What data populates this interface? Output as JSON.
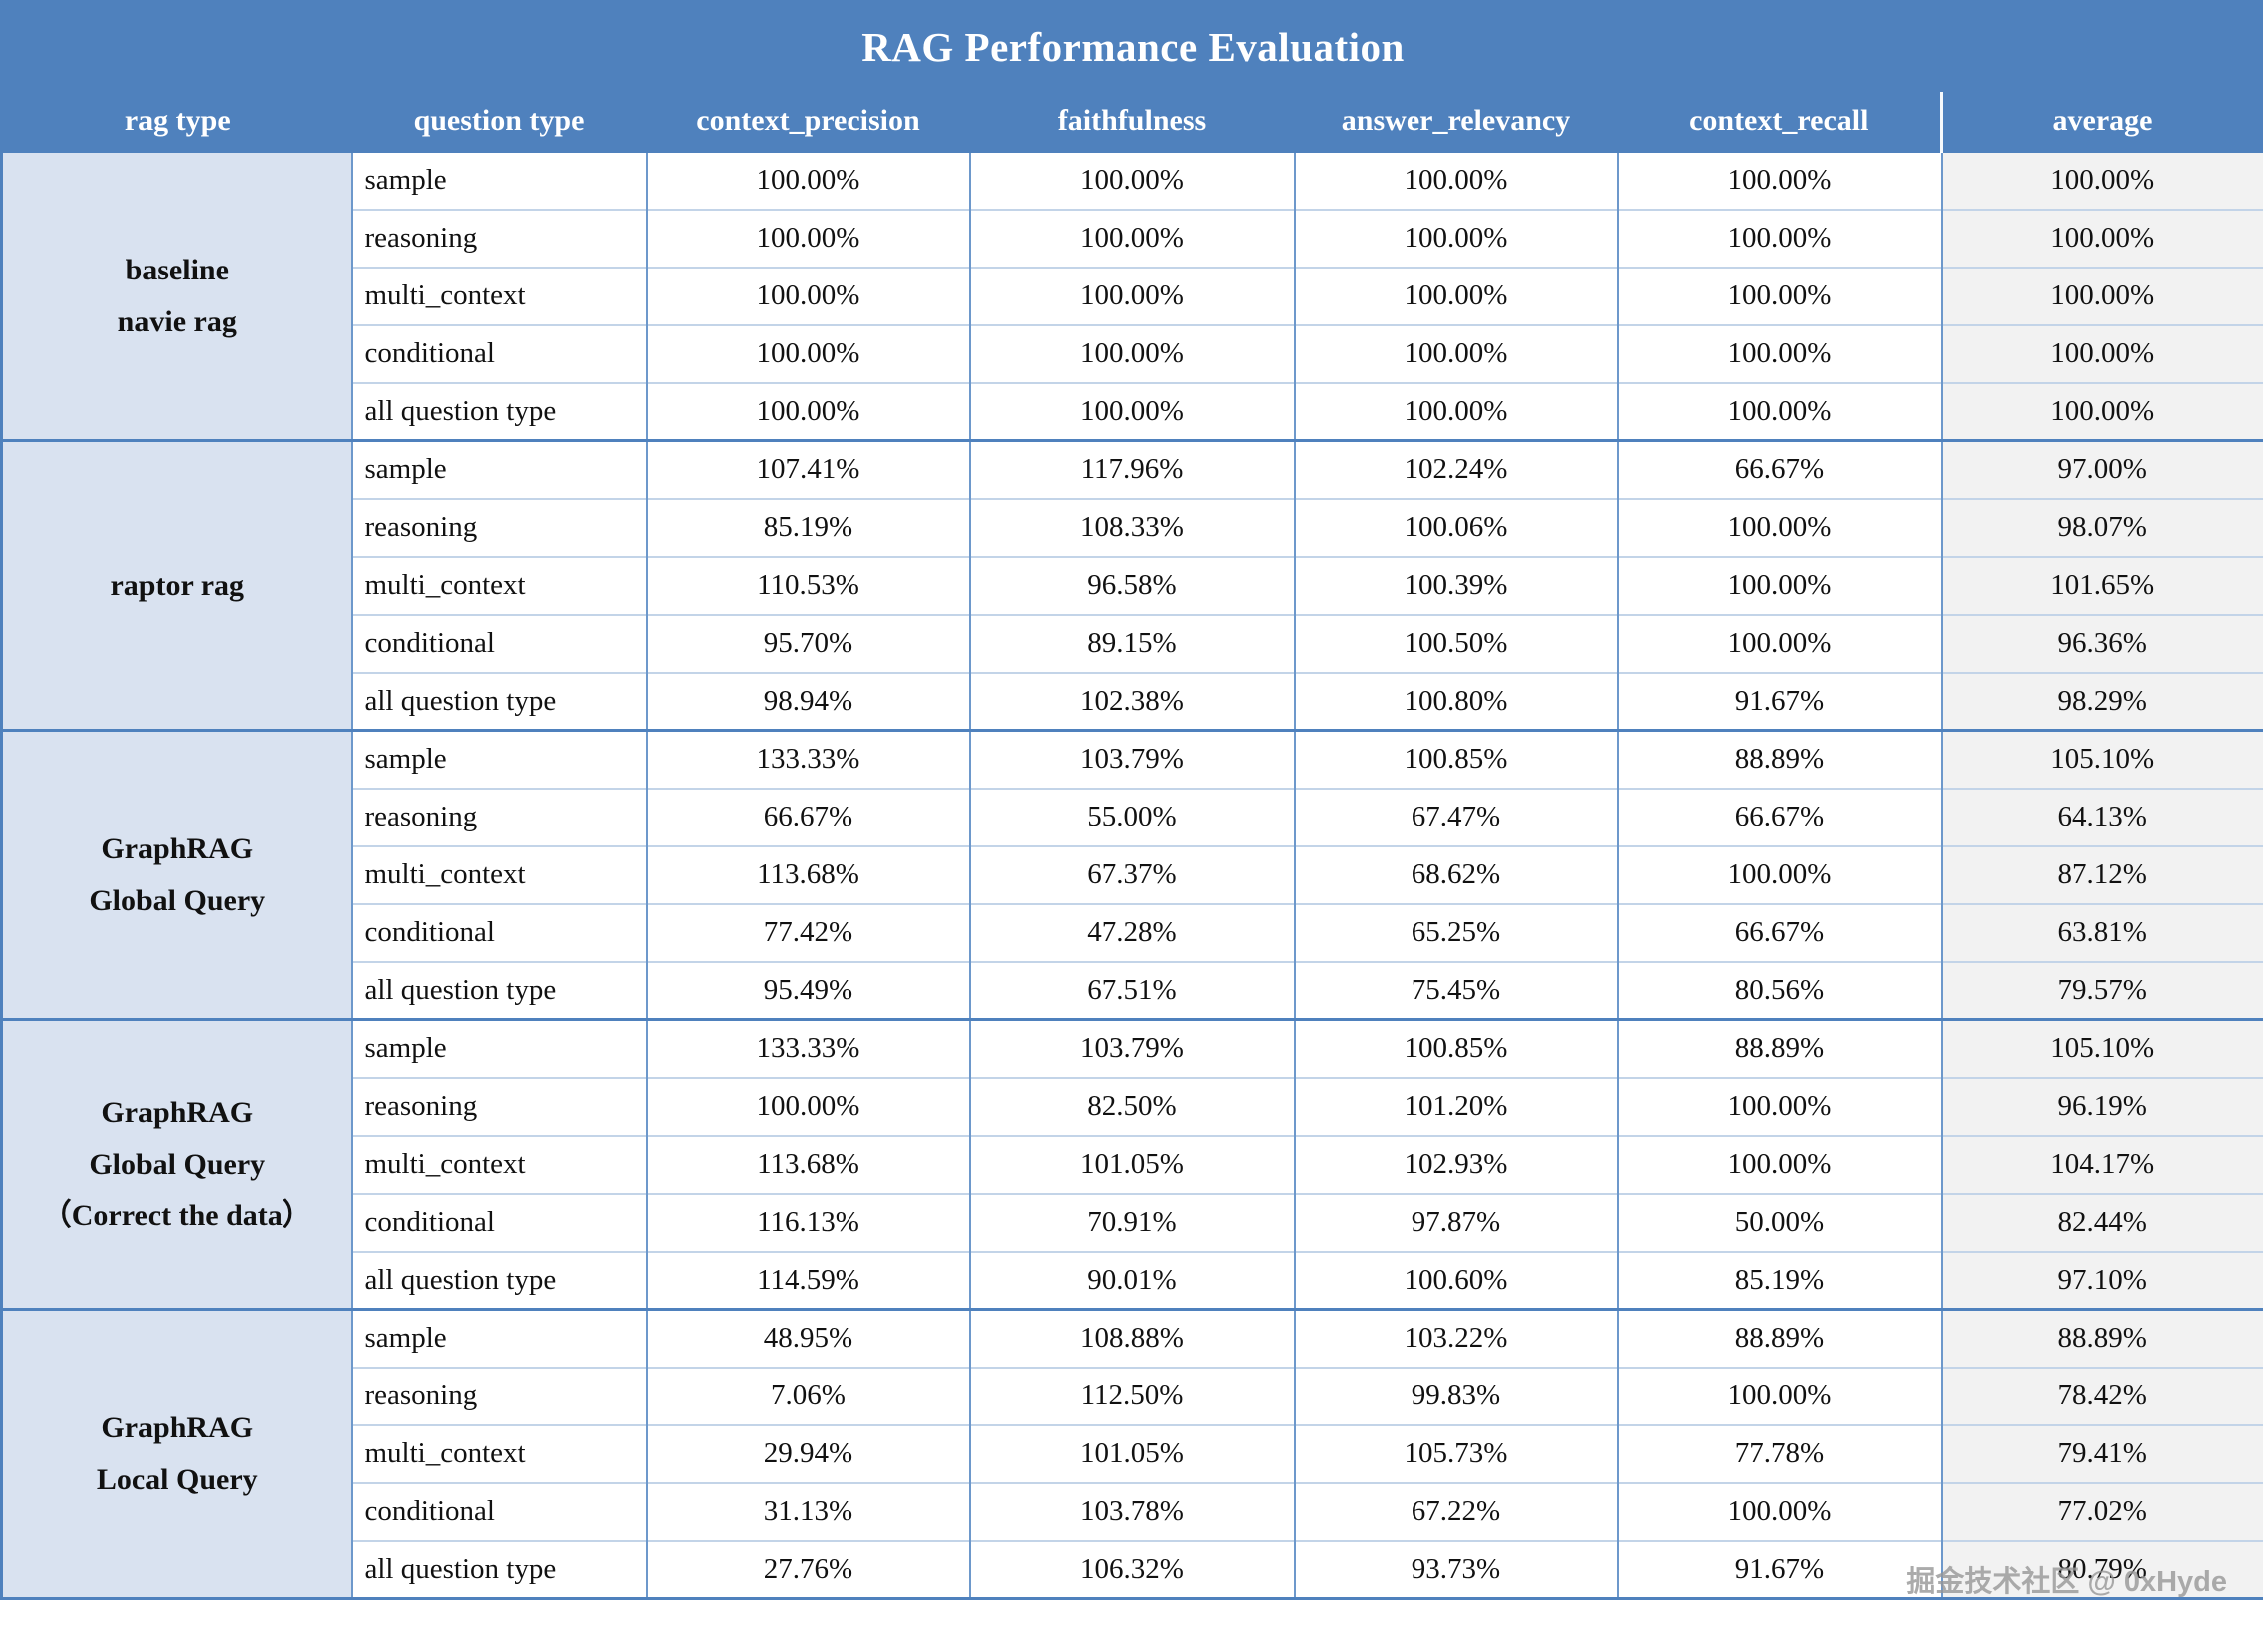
{
  "header": {
    "title": "RAG Performance Evaluation"
  },
  "watermark": "掘金技术社区 @ 0xHyde",
  "colors": {
    "header_bg": "#4f81bd",
    "header_text": "#ffffff",
    "ragtype_bg": "#d9e2f0",
    "average_bg": "#f2f2f2",
    "border_strong": "#4f81bd",
    "border_vertical": "#6d98cb",
    "border_row": "#c3d4e8",
    "text": "#111111"
  },
  "chart_data": {
    "type": "table",
    "title": "RAG Performance Evaluation",
    "columns": [
      "rag type",
      "question type",
      "context_precision",
      "faithfulness",
      "answer_relevancy",
      "context_recall",
      "average"
    ],
    "value_format": "percent",
    "groups": [
      {
        "rag_type": "baseline navie rag",
        "rag_type_lines": [
          "baseline",
          "navie rag"
        ],
        "rows": [
          {
            "question_type": "sample",
            "values": [
              "100.00%",
              "100.00%",
              "100.00%",
              "100.00%",
              "100.00%"
            ]
          },
          {
            "question_type": "reasoning",
            "values": [
              "100.00%",
              "100.00%",
              "100.00%",
              "100.00%",
              "100.00%"
            ]
          },
          {
            "question_type": "multi_context",
            "values": [
              "100.00%",
              "100.00%",
              "100.00%",
              "100.00%",
              "100.00%"
            ]
          },
          {
            "question_type": "conditional",
            "values": [
              "100.00%",
              "100.00%",
              "100.00%",
              "100.00%",
              "100.00%"
            ]
          },
          {
            "question_type": "all question type",
            "values": [
              "100.00%",
              "100.00%",
              "100.00%",
              "100.00%",
              "100.00%"
            ]
          }
        ]
      },
      {
        "rag_type": "raptor rag",
        "rag_type_lines": [
          "raptor rag"
        ],
        "rows": [
          {
            "question_type": "sample",
            "values": [
              "107.41%",
              "117.96%",
              "102.24%",
              "66.67%",
              "97.00%"
            ]
          },
          {
            "question_type": "reasoning",
            "values": [
              "85.19%",
              "108.33%",
              "100.06%",
              "100.00%",
              "98.07%"
            ]
          },
          {
            "question_type": "multi_context",
            "values": [
              "110.53%",
              "96.58%",
              "100.39%",
              "100.00%",
              "101.65%"
            ]
          },
          {
            "question_type": "conditional",
            "values": [
              "95.70%",
              "89.15%",
              "100.50%",
              "100.00%",
              "96.36%"
            ]
          },
          {
            "question_type": "all question type",
            "values": [
              "98.94%",
              "102.38%",
              "100.80%",
              "91.67%",
              "98.29%"
            ]
          }
        ]
      },
      {
        "rag_type": "GraphRAG Global Query",
        "rag_type_lines": [
          "GraphRAG",
          "Global Query"
        ],
        "rows": [
          {
            "question_type": "sample",
            "values": [
              "133.33%",
              "103.79%",
              "100.85%",
              "88.89%",
              "105.10%"
            ]
          },
          {
            "question_type": "reasoning",
            "values": [
              "66.67%",
              "55.00%",
              "67.47%",
              "66.67%",
              "64.13%"
            ]
          },
          {
            "question_type": "multi_context",
            "values": [
              "113.68%",
              "67.37%",
              "68.62%",
              "100.00%",
              "87.12%"
            ]
          },
          {
            "question_type": "conditional",
            "values": [
              "77.42%",
              "47.28%",
              "65.25%",
              "66.67%",
              "63.81%"
            ]
          },
          {
            "question_type": "all question type",
            "values": [
              "95.49%",
              "67.51%",
              "75.45%",
              "80.56%",
              "79.57%"
            ]
          }
        ]
      },
      {
        "rag_type": "GraphRAG Global Query （Correct the data）",
        "rag_type_lines": [
          "GraphRAG",
          "Global Query",
          "（Correct the data）"
        ],
        "rows": [
          {
            "question_type": "sample",
            "values": [
              "133.33%",
              "103.79%",
              "100.85%",
              "88.89%",
              "105.10%"
            ]
          },
          {
            "question_type": "reasoning",
            "values": [
              "100.00%",
              "82.50%",
              "101.20%",
              "100.00%",
              "96.19%"
            ]
          },
          {
            "question_type": "multi_context",
            "values": [
              "113.68%",
              "101.05%",
              "102.93%",
              "100.00%",
              "104.17%"
            ]
          },
          {
            "question_type": "conditional",
            "values": [
              "116.13%",
              "70.91%",
              "97.87%",
              "50.00%",
              "82.44%"
            ]
          },
          {
            "question_type": "all question type",
            "values": [
              "114.59%",
              "90.01%",
              "100.60%",
              "85.19%",
              "97.10%"
            ]
          }
        ]
      },
      {
        "rag_type": "GraphRAG Local Query",
        "rag_type_lines": [
          "GraphRAG",
          "Local Query"
        ],
        "rows": [
          {
            "question_type": "sample",
            "values": [
              "48.95%",
              "108.88%",
              "103.22%",
              "88.89%",
              "88.89%"
            ]
          },
          {
            "question_type": "reasoning",
            "values": [
              "7.06%",
              "112.50%",
              "99.83%",
              "100.00%",
              "78.42%"
            ]
          },
          {
            "question_type": "multi_context",
            "values": [
              "29.94%",
              "101.05%",
              "105.73%",
              "77.78%",
              "79.41%"
            ]
          },
          {
            "question_type": "conditional",
            "values": [
              "31.13%",
              "103.78%",
              "67.22%",
              "100.00%",
              "77.02%"
            ]
          },
          {
            "question_type": "all question type",
            "values": [
              "27.76%",
              "106.32%",
              "93.73%",
              "91.67%",
              "80.79%"
            ]
          }
        ]
      }
    ]
  }
}
